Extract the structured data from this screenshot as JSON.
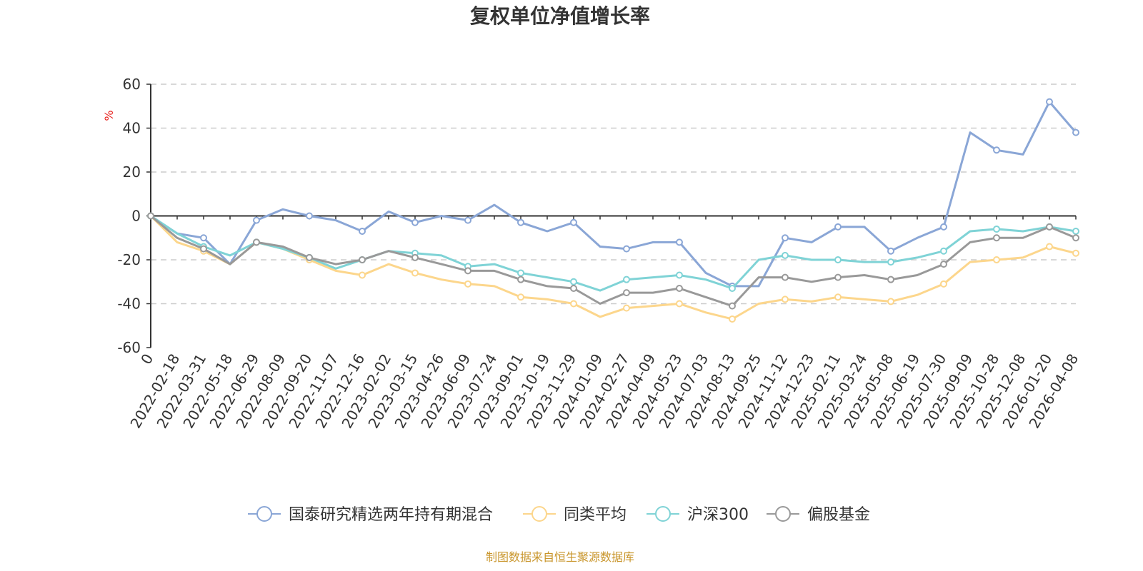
{
  "chart_data": {
    "type": "line",
    "title": "复权单位净值增长率",
    "ylabel": "%",
    "ylim": [
      -60,
      60
    ],
    "yticks": [
      60,
      40,
      20,
      0,
      -20,
      -40,
      -60
    ],
    "grid": true,
    "legend_position": "bottom-center",
    "source_note": "制图数据来自恒生聚源数据库",
    "categories": [
      "0",
      "2022-02-18",
      "2022-03-31",
      "2022-05-18",
      "2022-06-29",
      "2022-08-09",
      "2022-09-20",
      "2022-11-07",
      "2022-12-16",
      "2023-02-02",
      "2023-03-15",
      "2023-04-26",
      "2023-06-09",
      "2023-07-24",
      "2023-09-01",
      "2023-10-19",
      "2023-11-29",
      "2024-01-09",
      "2024-02-27",
      "2024-04-09",
      "2024-05-23",
      "2024-07-03",
      "2024-08-13",
      "2024-09-25",
      "2024-11-12",
      "2024-12-23",
      "2025-02-11",
      "2025-03-24",
      "2025-05-08",
      "2025-06-19",
      "2025-07-30",
      "2025-09-09",
      "2025-10-28",
      "2025-12-08",
      "2026-01-20",
      "2026-04-08"
    ],
    "series": [
      {
        "name": "国泰研究精选两年持有期混合",
        "color": "#8aa6d6",
        "values": [
          0,
          -8,
          -10,
          -22,
          -2,
          3,
          0,
          -2,
          -7,
          2,
          -3,
          0,
          -2,
          5,
          -3,
          -7,
          -3,
          -14,
          -15,
          -12,
          -12,
          -26,
          -32,
          -32,
          -10,
          -12,
          -5,
          -5,
          -16,
          -10,
          -5,
          38,
          30,
          28,
          52,
          38
        ]
      },
      {
        "name": "同类平均",
        "color": "#fcd68c",
        "values": [
          0,
          -12,
          -16,
          -22,
          -12,
          -15,
          -20,
          -25,
          -27,
          -22,
          -26,
          -29,
          -31,
          -32,
          -37,
          -38,
          -40,
          -46,
          -42,
          -41,
          -40,
          -44,
          -47,
          -40,
          -38,
          -39,
          -37,
          -38,
          -39,
          -36,
          -31,
          -21,
          -20,
          -19,
          -14,
          -17
        ]
      },
      {
        "name": "沪深300",
        "color": "#7fd3d6",
        "values": [
          0,
          -8,
          -14,
          -18,
          -12,
          -15,
          -19,
          -24,
          -20,
          -16,
          -17,
          -18,
          -23,
          -22,
          -26,
          -28,
          -30,
          -34,
          -29,
          -28,
          -27,
          -29,
          -33,
          -20,
          -18,
          -20,
          -20,
          -21,
          -21,
          -19,
          -16,
          -7,
          -6,
          -7,
          -5,
          -7
        ]
      },
      {
        "name": "偏股基金",
        "color": "#999999",
        "values": [
          0,
          -10,
          -15,
          -22,
          -12,
          -14,
          -19,
          -22,
          -20,
          -16,
          -19,
          -22,
          -25,
          -25,
          -29,
          -32,
          -33,
          -40,
          -35,
          -35,
          -33,
          -37,
          -41,
          -28,
          -28,
          -30,
          -28,
          -27,
          -29,
          -27,
          -22,
          -12,
          -10,
          -10,
          -5,
          -10
        ]
      }
    ]
  }
}
